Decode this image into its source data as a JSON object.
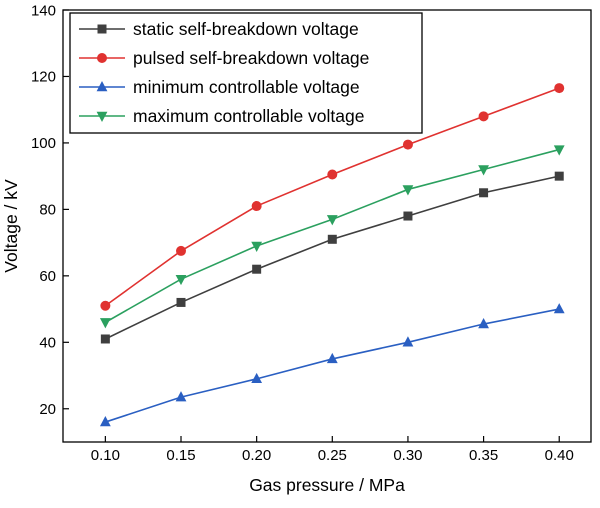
{
  "figure": {
    "background": "#ffffff",
    "frame_color": "#000000",
    "text_color": "#000000"
  },
  "chart_data": {
    "type": "line",
    "title": "",
    "xlabel": "Gas pressure / MPa",
    "ylabel": "Voltage / kV",
    "x": [
      0.1,
      0.15,
      0.2,
      0.25,
      0.3,
      0.35,
      0.4
    ],
    "series": [
      {
        "name": "static self-breakdown voltage",
        "marker": "square",
        "color": "#3f3f3f",
        "values": [
          41,
          52,
          62,
          71,
          78,
          85,
          90
        ]
      },
      {
        "name": "pulsed self-breakdown voltage",
        "marker": "circle",
        "color": "#e03230",
        "values": [
          51,
          67.5,
          81,
          90.5,
          99.5,
          108,
          116.5
        ]
      },
      {
        "name": "minimum controllable voltage",
        "marker": "triangle-up",
        "color": "#2a5fc2",
        "values": [
          16,
          23.5,
          29,
          35,
          40,
          45.5,
          50
        ]
      },
      {
        "name": "maximum controllable voltage",
        "marker": "triangle-down",
        "color": "#2ba05f",
        "values": [
          46,
          59,
          69,
          77,
          86,
          92,
          98
        ]
      }
    ],
    "xlim": [
      0.072,
      0.421
    ],
    "ylim": [
      10,
      140
    ],
    "x_ticks": [
      0.1,
      0.15,
      0.2,
      0.25,
      0.3,
      0.35,
      0.4
    ],
    "x_tick_labels": [
      "0.10",
      "0.15",
      "0.20",
      "0.25",
      "0.30",
      "0.35",
      "0.40"
    ],
    "y_ticks": [
      20,
      40,
      60,
      80,
      100,
      120,
      140
    ],
    "y_tick_labels": [
      "20",
      "40",
      "60",
      "80",
      "100",
      "120",
      "140"
    ],
    "grid": false,
    "legend_position": "top-left"
  }
}
